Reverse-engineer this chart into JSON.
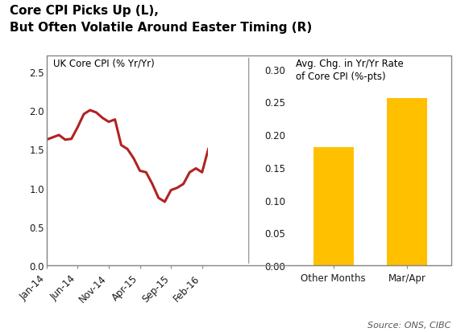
{
  "title_line1": "Core CPI Picks Up (L),",
  "title_line2": "But Often Volatile Around Easter Timing (R)",
  "source_text": "Source: ONS, CIBC",
  "left_label": "UK Core CPI (% Yr/Yr)",
  "right_label_line1": "Avg. Chg. in Yr/Yr Rate",
  "right_label_line2": "of Core CPI (%-pts)",
  "line_color": "#B22222",
  "line_width": 2.2,
  "line_y": [
    1.62,
    1.65,
    1.68,
    1.62,
    1.63,
    1.78,
    1.95,
    2.0,
    1.97,
    1.9,
    1.85,
    1.88,
    1.55,
    1.5,
    1.38,
    1.22,
    1.2,
    1.05,
    0.87,
    0.82,
    0.97,
    1.0,
    1.05,
    1.2,
    1.25,
    1.2,
    1.5
  ],
  "line_xtick_positions": [
    0,
    5,
    10,
    15,
    20,
    25
  ],
  "line_xticklabels": [
    "Jan-14",
    "Jun-14",
    "Nov-14",
    "Apr-15",
    "Sep-15",
    "Feb-16"
  ],
  "line_ylim": [
    0.0,
    2.7
  ],
  "line_yticks": [
    0.0,
    0.5,
    1.0,
    1.5,
    2.0,
    2.5
  ],
  "bar_categories": [
    "Other Months",
    "Mar/Apr"
  ],
  "bar_values": [
    0.18,
    0.255
  ],
  "bar_color": "#FFC000",
  "bar_ylim": [
    0.0,
    0.32
  ],
  "bar_yticks": [
    0.0,
    0.05,
    0.1,
    0.15,
    0.2,
    0.25,
    0.3
  ],
  "title_fontsize": 11,
  "title_color": "#000000",
  "tick_label_color": "#1a1a1a",
  "tick_label_fontsize": 8.5,
  "inner_label_fontsize": 8.5,
  "source_fontsize": 8,
  "bg_color": "#FFFFFF",
  "box_color": "#888888",
  "spine_color": "#888888"
}
